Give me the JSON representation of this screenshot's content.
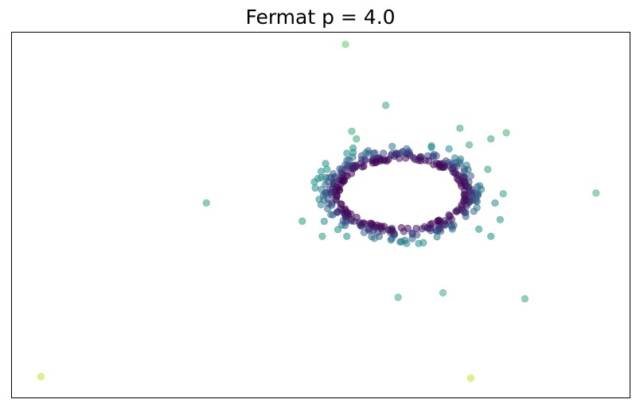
{
  "chart_data": {
    "type": "scatter",
    "title": "Fermat p = 4.0",
    "xlabel": "",
    "ylabel": "",
    "xlim": [
      -10,
      10
    ],
    "ylim": [
      -6,
      6
    ],
    "axes_ticks": false,
    "grid": false,
    "legend": "none",
    "colormap": "viridis",
    "color_range": [
      0,
      1
    ],
    "marker_alpha": 0.55,
    "ring": {
      "center": [
        2.6,
        0.7
      ],
      "radius_x": 2.0,
      "radius_y": 1.1,
      "points": 360,
      "seed": 7
    },
    "outliers": [
      {
        "x": -9.05,
        "y": -5.3,
        "c": 0.92
      },
      {
        "x": 4.85,
        "y": -5.35,
        "c": 0.92
      },
      {
        "x": 0.8,
        "y": 5.6,
        "c": 0.76
      },
      {
        "x": 2.1,
        "y": 3.6,
        "c": 0.62
      },
      {
        "x": 3.95,
        "y": -2.55,
        "c": 0.62
      },
      {
        "x": 2.5,
        "y": -2.7,
        "c": 0.62
      },
      {
        "x": 6.6,
        "y": -2.75,
        "c": 0.62
      },
      {
        "x": 8.9,
        "y": 0.72,
        "c": 0.65
      },
      {
        "x": 6.0,
        "y": 2.7,
        "c": 0.66
      },
      {
        "x": -3.7,
        "y": 0.4,
        "c": 0.58
      },
      {
        "x": 1.15,
        "y": 2.5,
        "c": 0.62
      },
      {
        "x": 1.0,
        "y": 2.75,
        "c": 0.62
      },
      {
        "x": 4.5,
        "y": 2.85,
        "c": 0.6
      },
      {
        "x": 4.8,
        "y": 2.3,
        "c": 0.6
      },
      {
        "x": 5.5,
        "y": 2.5,
        "c": 0.6
      },
      {
        "x": 5.4,
        "y": 1.5,
        "c": 0.58
      },
      {
        "x": 5.9,
        "y": 0.7,
        "c": 0.58
      },
      {
        "x": -0.6,
        "y": -0.2,
        "c": 0.55
      },
      {
        "x": 0.05,
        "y": -0.7,
        "c": 0.55
      },
      {
        "x": 0.2,
        "y": 1.5,
        "c": 0.5
      },
      {
        "x": 5.8,
        "y": -0.15,
        "c": 0.52
      },
      {
        "x": 5.5,
        "y": -0.7,
        "c": 0.5
      }
    ]
  }
}
